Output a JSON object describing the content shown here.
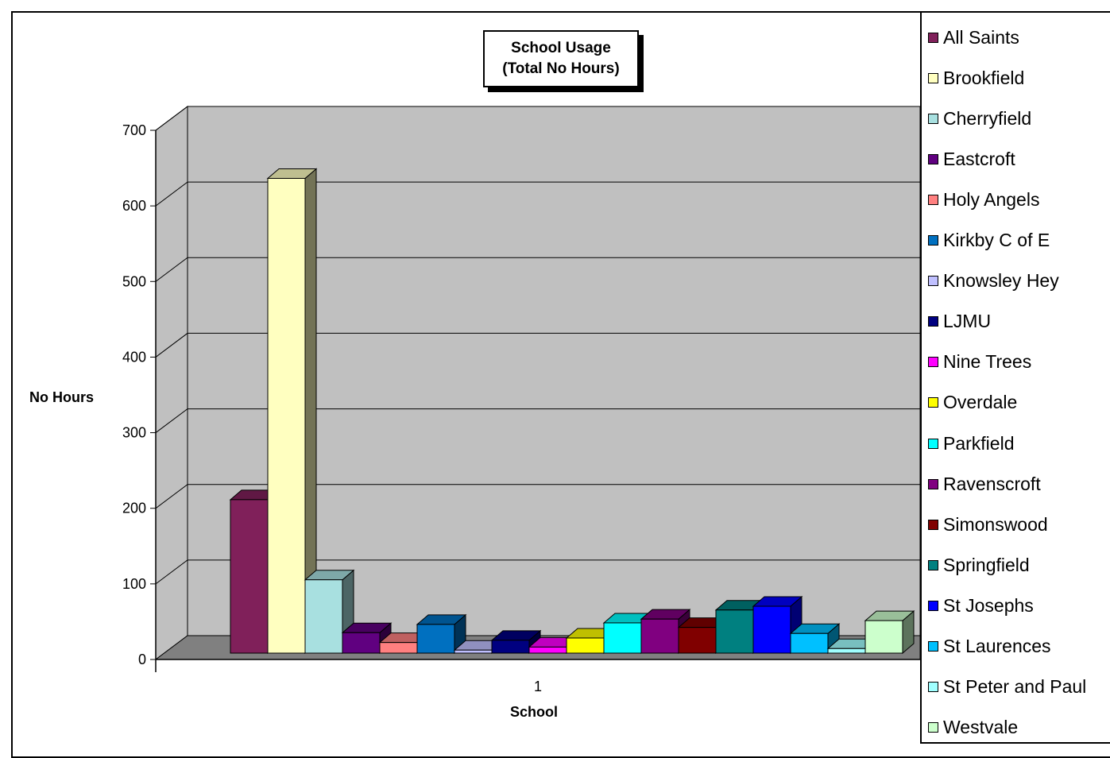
{
  "chart_data": {
    "type": "bar",
    "title_line1": "School Usage",
    "title_line2": "(Total No Hours)",
    "xlabel": "School",
    "ylabel": "No Hours",
    "categories": [
      "1"
    ],
    "ylim": [
      0,
      700
    ],
    "yticks": [
      "0",
      "100",
      "200",
      "300",
      "400",
      "500",
      "600",
      "700"
    ],
    "grid": true,
    "legend_position": "right",
    "series": [
      {
        "name": "All Saints",
        "value": 203,
        "color": "#80205a"
      },
      {
        "name": "Brookfield",
        "value": 628,
        "color": "#ffffc0"
      },
      {
        "name": "Cherryfield",
        "value": 97,
        "color": "#a8e0e0"
      },
      {
        "name": "Eastcroft",
        "value": 27,
        "color": "#600080"
      },
      {
        "name": "Holy Angels",
        "value": 14,
        "color": "#ff8080"
      },
      {
        "name": "Kirkby C of E",
        "value": 38,
        "color": "#0070c0"
      },
      {
        "name": "Knowsley Hey",
        "value": 4,
        "color": "#c0c0ff"
      },
      {
        "name": "LJMU",
        "value": 17,
        "color": "#000080"
      },
      {
        "name": "Nine Trees",
        "value": 8,
        "color": "#ff00ff"
      },
      {
        "name": "Overdale",
        "value": 20,
        "color": "#ffff00"
      },
      {
        "name": "Parkfield",
        "value": 40,
        "color": "#00ffff"
      },
      {
        "name": "Ravenscroft",
        "value": 45,
        "color": "#800080"
      },
      {
        "name": "Simonswood",
        "value": 34,
        "color": "#800000"
      },
      {
        "name": "Springfield",
        "value": 57,
        "color": "#008080"
      },
      {
        "name": "St Josephs",
        "value": 62,
        "color": "#0000ff"
      },
      {
        "name": "St Laurences",
        "value": 26,
        "color": "#00c0ff"
      },
      {
        "name": "St Peter and Paul",
        "value": 6,
        "color": "#a0ffff"
      },
      {
        "name": "Westvale",
        "value": 43,
        "color": "#ccffcc"
      }
    ],
    "colors": {
      "wall": "#c0c0c0",
      "floor": "#808080",
      "gridline": "#000000"
    }
  }
}
